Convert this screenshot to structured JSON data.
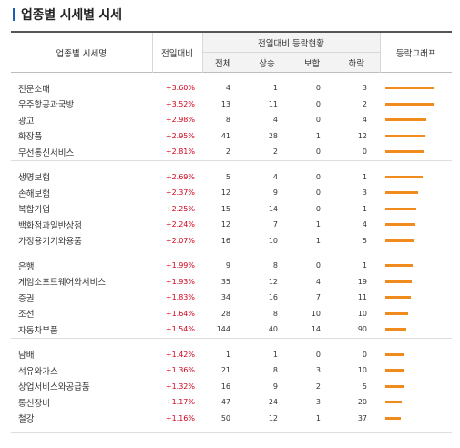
{
  "title": "업종별 시세별 시세",
  "headers": {
    "name": "업종별 시세명",
    "change": "전일대비",
    "trend": "전일대비 등락현황",
    "graph": "등락그래프",
    "total": "전체",
    "up": "상승",
    "flat": "보합",
    "down": "하락"
  },
  "colors": {
    "accent": "#f08c1e",
    "positive": "#d0021b",
    "title_bar": "#1a5fb4"
  },
  "groups": [
    {
      "rows": [
        {
          "name": "전문소매",
          "rate": "+3.60%",
          "total": "4",
          "up": "1",
          "flat": "0",
          "down": "3",
          "level": 1.0
        },
        {
          "name": "우주항공과국방",
          "rate": "+3.52%",
          "total": "13",
          "up": "11",
          "flat": "0",
          "down": "2",
          "level": 0.98
        },
        {
          "name": "광고",
          "rate": "+2.98%",
          "total": "8",
          "up": "4",
          "flat": "0",
          "down": "4",
          "level": 0.83
        },
        {
          "name": "화장품",
          "rate": "+2.95%",
          "total": "41",
          "up": "28",
          "flat": "1",
          "down": "12",
          "level": 0.82
        },
        {
          "name": "무선통신서비스",
          "rate": "+2.81%",
          "total": "2",
          "up": "2",
          "flat": "0",
          "down": "0",
          "level": 0.78
        }
      ]
    },
    {
      "rows": [
        {
          "name": "생명보험",
          "rate": "+2.69%",
          "total": "5",
          "up": "4",
          "flat": "0",
          "down": "1",
          "level": 0.75
        },
        {
          "name": "손해보험",
          "rate": "+2.37%",
          "total": "12",
          "up": "9",
          "flat": "0",
          "down": "3",
          "level": 0.66
        },
        {
          "name": "복합기업",
          "rate": "+2.25%",
          "total": "15",
          "up": "14",
          "flat": "0",
          "down": "1",
          "level": 0.63
        },
        {
          "name": "백화점과일반상점",
          "rate": "+2.24%",
          "total": "12",
          "up": "7",
          "flat": "1",
          "down": "4",
          "level": 0.62
        },
        {
          "name": "가정용기기와용품",
          "rate": "+2.07%",
          "total": "16",
          "up": "10",
          "flat": "1",
          "down": "5",
          "level": 0.58
        }
      ]
    },
    {
      "rows": [
        {
          "name": "은행",
          "rate": "+1.99%",
          "total": "9",
          "up": "8",
          "flat": "0",
          "down": "1",
          "level": 0.55
        },
        {
          "name": "게임소프트웨어와서비스",
          "rate": "+1.93%",
          "total": "35",
          "up": "12",
          "flat": "4",
          "down": "19",
          "level": 0.54
        },
        {
          "name": "증권",
          "rate": "+1.83%",
          "total": "34",
          "up": "16",
          "flat": "7",
          "down": "11",
          "level": 0.51
        },
        {
          "name": "조선",
          "rate": "+1.64%",
          "total": "28",
          "up": "8",
          "flat": "10",
          "down": "10",
          "level": 0.46
        },
        {
          "name": "자동차부품",
          "rate": "+1.54%",
          "total": "144",
          "up": "40",
          "flat": "14",
          "down": "90",
          "level": 0.43
        }
      ]
    },
    {
      "rows": [
        {
          "name": "담배",
          "rate": "+1.42%",
          "total": "1",
          "up": "1",
          "flat": "0",
          "down": "0",
          "level": 0.39
        },
        {
          "name": "석유와가스",
          "rate": "+1.36%",
          "total": "21",
          "up": "8",
          "flat": "3",
          "down": "10",
          "level": 0.38
        },
        {
          "name": "상업서비스와공급품",
          "rate": "+1.32%",
          "total": "16",
          "up": "9",
          "flat": "2",
          "down": "5",
          "level": 0.37
        },
        {
          "name": "통신장비",
          "rate": "+1.17%",
          "total": "47",
          "up": "24",
          "flat": "3",
          "down": "20",
          "level": 0.33
        },
        {
          "name": "철강",
          "rate": "+1.16%",
          "total": "50",
          "up": "12",
          "flat": "1",
          "down": "37",
          "level": 0.32
        }
      ]
    }
  ]
}
